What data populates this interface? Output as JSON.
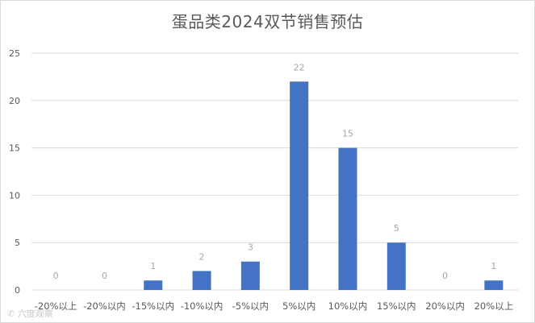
{
  "chart_data": {
    "type": "bar",
    "title": "蛋品类2024双节销售预估",
    "xlabel": "",
    "ylabel": "",
    "categories": [
      "-20%以上",
      "-20%以内",
      "-15%以内",
      "-10%以内",
      "-5%以内",
      "5%以内",
      "10%以内",
      "15%以内",
      "20%以内",
      "20%以上"
    ],
    "values": [
      0,
      0,
      1,
      2,
      3,
      22,
      15,
      5,
      0,
      1
    ],
    "ylim": [
      0,
      25
    ],
    "yticks": [
      0,
      5,
      10,
      15,
      20,
      25
    ],
    "grid": true,
    "legend": "none",
    "colors": {
      "bar": "#4472C4",
      "grid": "#d9d9d9",
      "label": "#a6a6a6",
      "tick": "#595959"
    }
  },
  "watermark": "✆ 六度观察"
}
